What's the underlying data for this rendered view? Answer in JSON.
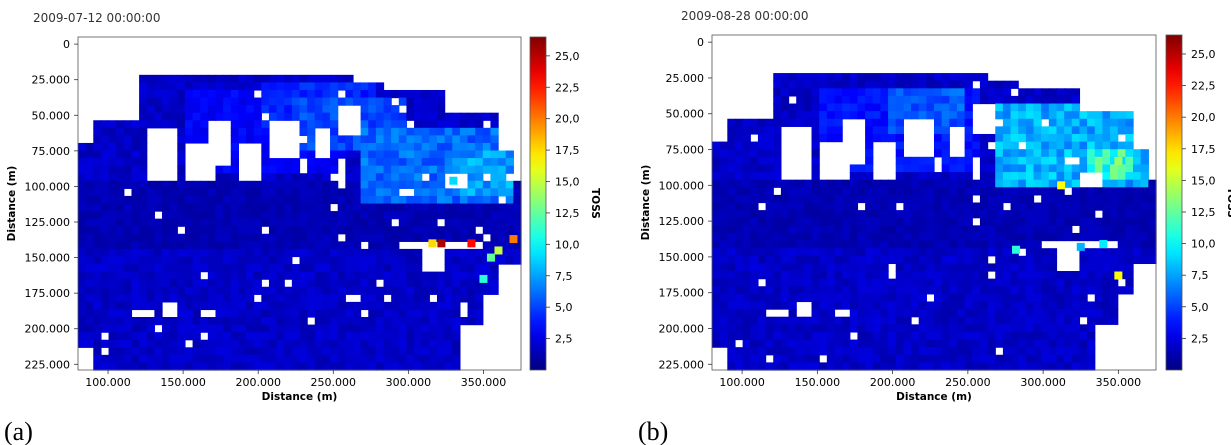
{
  "chart_data": [
    {
      "type": "heatmap",
      "panel_label": "(a)",
      "timestamp": "2009-07-12 00:00:00",
      "xlabel": "Distance (m)",
      "ylabel": "Distance (m)",
      "colorbar_label": "TOSS",
      "xlim": [
        80000,
        375000
      ],
      "ylim": [
        229000,
        -5000
      ],
      "y_inverted": true,
      "x_ticks": [
        100000,
        150000,
        200000,
        250000,
        300000,
        350000
      ],
      "x_tick_labels": [
        "100.000",
        "150.000",
        "200.000",
        "250.000",
        "300.000",
        "350.000"
      ],
      "y_ticks": [
        0,
        25000,
        50000,
        75000,
        100000,
        125000,
        150000,
        175000,
        200000,
        225000
      ],
      "y_tick_labels": [
        "0",
        "25.000",
        "50.000",
        "75.000",
        "100.000",
        "125.000",
        "150.000",
        "175.000",
        "200.000",
        "225.000"
      ],
      "colorbar_range": [
        0,
        26.5
      ],
      "colorbar_ticks": [
        2.5,
        5,
        7.5,
        10,
        12.5,
        15,
        17.5,
        20,
        22.5,
        25
      ],
      "colorbar_tick_labels": [
        "2,5",
        "5,0",
        "7,5",
        "10,0",
        "12,5",
        "15,0",
        "17,5",
        "20,0",
        "22,5",
        "25,0"
      ],
      "colormap": "jet",
      "regions": [
        {
          "x": [
            200000,
            280000
          ],
          "y": [
            28000,
            62000
          ],
          "value": 4.5
        },
        {
          "x": [
            150000,
            260000
          ],
          "y": [
            30000,
            90000
          ],
          "value": 3.5
        },
        {
          "x": [
            270000,
            370000
          ],
          "y": [
            60000,
            110000
          ],
          "value": 6.5
        },
        {
          "x": [
            330000,
            370000
          ],
          "y": [
            75000,
            105000
          ],
          "value": 8.0
        },
        {
          "x": [
            220000,
            300000
          ],
          "y": [
            40000,
            75000
          ],
          "value": 5.5
        }
      ],
      "hotspots": [
        {
          "x": 322000,
          "y": 140000,
          "value": 25.5
        },
        {
          "x": 342000,
          "y": 140000,
          "value": 23.0
        },
        {
          "x": 370000,
          "y": 137000,
          "value": 20.0
        },
        {
          "x": 316000,
          "y": 140000,
          "value": 17.5
        },
        {
          "x": 360000,
          "y": 145000,
          "value": 15.0
        },
        {
          "x": 355000,
          "y": 150000,
          "value": 12.5
        },
        {
          "x": 350000,
          "y": 165000,
          "value": 11.0
        },
        {
          "x": 330000,
          "y": 96000,
          "value": 9.0
        }
      ]
    },
    {
      "type": "heatmap",
      "panel_label": "(b)",
      "timestamp": "2009-08-28 00:00:00",
      "xlabel": "Distance (m)",
      "ylabel": "Distance (m)",
      "colorbar_label": "TOSS",
      "xlim": [
        80000,
        375000
      ],
      "ylim": [
        229000,
        -5000
      ],
      "y_inverted": true,
      "x_ticks": [
        100000,
        150000,
        200000,
        250000,
        300000,
        350000
      ],
      "x_tick_labels": [
        "100.000",
        "150.000",
        "200.000",
        "250.000",
        "300.000",
        "350.000"
      ],
      "y_ticks": [
        0,
        25000,
        50000,
        75000,
        100000,
        125000,
        150000,
        175000,
        200000,
        225000
      ],
      "y_tick_labels": [
        "0",
        "25.000",
        "50.000",
        "75.000",
        "100.000",
        "125.000",
        "150.000",
        "175.000",
        "200.000",
        "225.000"
      ],
      "colorbar_range": [
        0,
        26.5
      ],
      "colorbar_ticks": [
        2.5,
        5,
        7.5,
        10,
        12.5,
        15,
        17.5,
        20,
        22.5,
        25
      ],
      "colorbar_tick_labels": [
        "2,5",
        "5,0",
        "7,5",
        "10,0",
        "12,5",
        "15,0",
        "17,5",
        "20,0",
        "22,5",
        "25,0"
      ],
      "colormap": "jet",
      "regions": [
        {
          "x": [
            195000,
            250000
          ],
          "y": [
            30000,
            62000
          ],
          "value": 6.0
        },
        {
          "x": [
            270000,
            370000
          ],
          "y": [
            45000,
            100000
          ],
          "value": 8.5
        },
        {
          "x": [
            330000,
            362000
          ],
          "y": [
            75000,
            95000
          ],
          "value": 12.0
        },
        {
          "x": [
            150000,
            260000
          ],
          "y": [
            30000,
            90000
          ],
          "value": 4.0
        }
      ],
      "hotspots": [
        {
          "x": 350000,
          "y": 83000,
          "value": 14.0
        },
        {
          "x": 312000,
          "y": 100000,
          "value": 16.5
        },
        {
          "x": 282000,
          "y": 145000,
          "value": 11.0
        },
        {
          "x": 340000,
          "y": 141000,
          "value": 9.5
        },
        {
          "x": 350000,
          "y": 163000,
          "value": 16.5
        },
        {
          "x": 325000,
          "y": 143000,
          "value": 8.0
        }
      ]
    }
  ]
}
